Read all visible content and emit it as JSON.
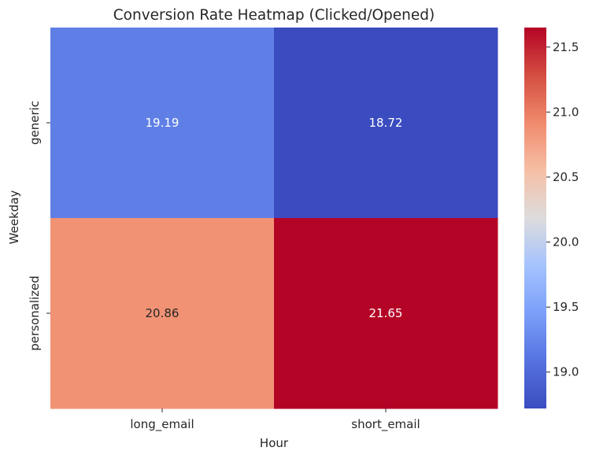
{
  "chart_data": {
    "type": "heatmap",
    "title": "Conversion Rate Heatmap (Clicked/Opened)",
    "xlabel": "Hour",
    "ylabel": "Weekday",
    "x_categories": [
      "long_email",
      "short_email"
    ],
    "y_categories": [
      "generic",
      "personalized"
    ],
    "values": [
      [
        19.19,
        18.72
      ],
      [
        20.86,
        21.65
      ]
    ],
    "value_labels": [
      [
        "19.19",
        "18.72"
      ],
      [
        "20.86",
        "21.65"
      ]
    ],
    "colormap": "coolwarm",
    "vmin": 18.72,
    "vmax": 21.65,
    "colorbar_ticks": [
      "19.0",
      "19.5",
      "20.0",
      "20.5",
      "21.0",
      "21.5"
    ],
    "colorbar_tick_values": [
      19.0,
      19.5,
      20.0,
      20.5,
      21.0,
      21.5
    ],
    "grid": false
  }
}
